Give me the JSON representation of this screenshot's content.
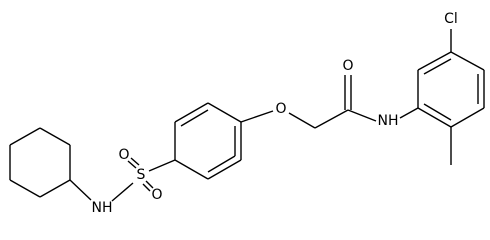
{
  "atoms": [
    {
      "label": "Cl"
    },
    {
      "label": "O"
    },
    {
      "label": "NH"
    },
    {
      "label": "O"
    },
    {
      "label": "O"
    },
    {
      "label": "S"
    },
    {
      "label": "O"
    },
    {
      "label": "NH"
    }
  ]
}
